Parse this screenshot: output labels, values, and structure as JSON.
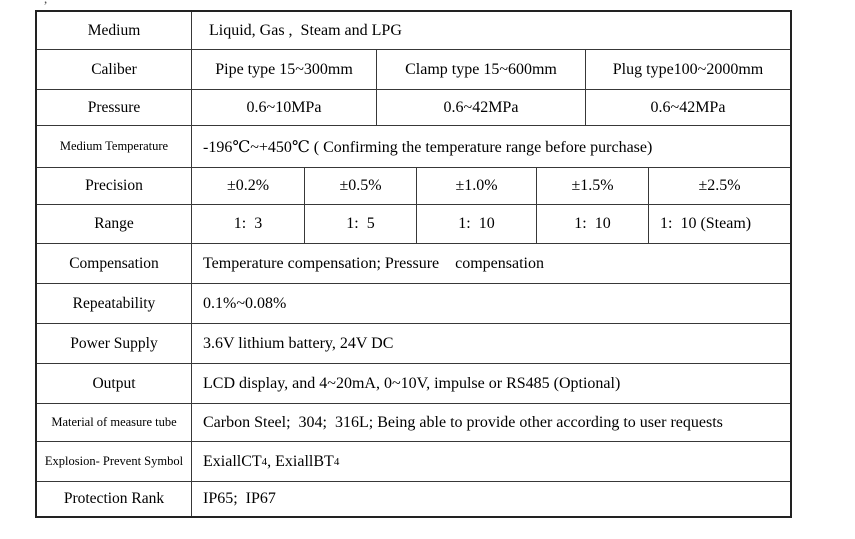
{
  "fragment_char": ",",
  "colors": {
    "border": "#383838",
    "outer_border": "#222222",
    "text": "#000000",
    "background": "#ffffff"
  },
  "table": {
    "rows": [
      {
        "label": "Medium",
        "cells": [
          "Liquid, Gas ,  Steam and LPG"
        ]
      },
      {
        "label": "Caliber",
        "cells": [
          "Pipe type 15~300mm",
          "Clamp type 15~600mm",
          "Plug type100~2000mm"
        ]
      },
      {
        "label": "Pressure",
        "cells": [
          "0.6~10MPa",
          "0.6~42MPa",
          "0.6~42MPa"
        ]
      },
      {
        "label": "Medium Temperature",
        "cells": [
          "-196℃~+450℃ ( Confirming the temperature range before purchase)"
        ]
      },
      {
        "label": "Precision",
        "cells": [
          "±0.2%",
          "±0.5%",
          "±1.0%",
          "±1.5%",
          "±2.5%"
        ]
      },
      {
        "label": "Range",
        "cells": [
          "1:  3",
          "1:  5",
          "1:  10",
          "1:  10",
          "1:  10 (Steam)"
        ]
      },
      {
        "label": "Compensation",
        "cells": [
          "Temperature compensation; Pressure    compensation"
        ]
      },
      {
        "label": "Repeatability",
        "cells": [
          "0.1%~0.08%"
        ]
      },
      {
        "label": "Power Supply",
        "cells": [
          "3.6V lithium battery, 24V DC"
        ]
      },
      {
        "label": "Output",
        "cells": [
          "LCD display, and 4~20mA, 0~10V, impulse or RS485 (Optional)"
        ]
      },
      {
        "label": "Material of measure tube",
        "cells": [
          "Carbon Steel;  304;  316L; Being able to provide other according to user requests"
        ]
      },
      {
        "label": "Explosion- Prevent Symbol",
        "cell_parts": [
          "ExiallCT",
          "4",
          ", ExiallBT",
          "4"
        ]
      },
      {
        "label": "Protection Rank",
        "cells": [
          "IP65;  IP67"
        ]
      }
    ]
  }
}
